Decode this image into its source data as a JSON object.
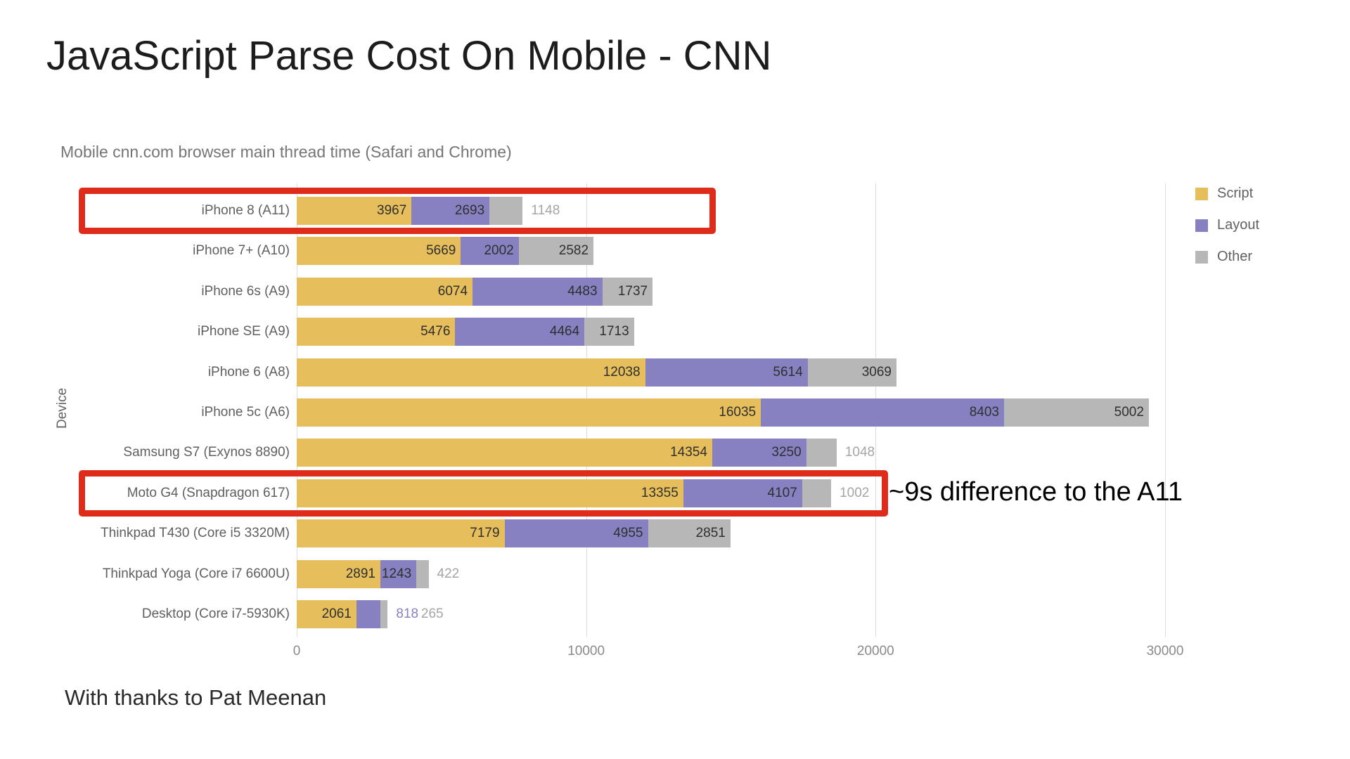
{
  "page_title": "JavaScript Parse Cost On Mobile - CNN",
  "footer_credit": "With thanks to Pat Meenan",
  "annotations": {
    "note": "~9s difference to the A11",
    "highlighted_categories": [
      "iPhone 8 (A11)",
      "Moto G4 (Snapdragon 617)"
    ],
    "box_color": "#df2c1a"
  },
  "chart_data": {
    "type": "bar",
    "orientation": "horizontal",
    "stacked": true,
    "title": "Mobile cnn.com browser main thread time (Safari and Chrome)",
    "xlabel": "",
    "ylabel": "Device",
    "xlim": [
      0,
      32500
    ],
    "x_ticks": [
      0,
      10000,
      20000,
      30000
    ],
    "grid": "vertical",
    "legend_position": "top-right",
    "categories": [
      "iPhone 8 (A11)",
      "iPhone 7+ (A10)",
      "iPhone 6s (A9)",
      "iPhone SE (A9)",
      "iPhone 6 (A8)",
      "iPhone 5c (A6)",
      "Samsung S7 (Exynos 8890)",
      "Moto G4 (Snapdragon 617)",
      "Thinkpad T430 (Core i5 3320M)",
      "Thinkpad Yoga (Core i7 6600U)",
      "Desktop (Core i7-5930K)"
    ],
    "series": [
      {
        "name": "Script",
        "color": "#e6bf5c",
        "values": [
          3967,
          5669,
          6074,
          5476,
          12038,
          16035,
          14354,
          13355,
          7179,
          2891,
          2061
        ]
      },
      {
        "name": "Layout",
        "color": "#8781c1",
        "values": [
          2693,
          2002,
          4483,
          4464,
          5614,
          8403,
          3250,
          4107,
          4955,
          1243,
          818
        ]
      },
      {
        "name": "Other",
        "color": "#b7b7b7",
        "values": [
          1148,
          2582,
          1737,
          1713,
          3069,
          5002,
          1048,
          1002,
          2851,
          422,
          265
        ]
      }
    ]
  }
}
